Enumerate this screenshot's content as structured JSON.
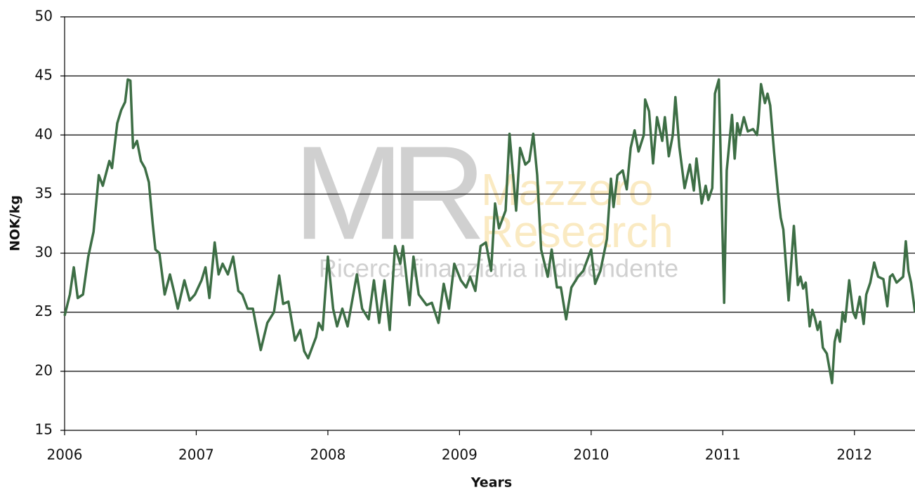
{
  "chart_data": {
    "type": "line",
    "y_label": "NOK/kg",
    "x_label": "Years",
    "watermark": {
      "logo": "MR",
      "name_line1": "Mazzero",
      "name_line2": "Research",
      "tagline": "Ricerca finanziaria indipendente"
    },
    "color": "#3d6e45",
    "grid": true,
    "xlim": [
      2006,
      2012.46
    ],
    "xticks": [
      2006,
      2007,
      2008,
      2009,
      2010,
      2011,
      2012
    ],
    "ylim": [
      15,
      50
    ],
    "yticks": [
      15,
      20,
      25,
      30,
      35,
      40,
      45,
      50
    ],
    "x": [
      2006.0,
      2006.04,
      2006.07,
      2006.1,
      2006.14,
      2006.18,
      2006.22,
      2006.26,
      2006.29,
      2006.34,
      2006.36,
      2006.4,
      2006.43,
      2006.46,
      2006.48,
      2006.5,
      2006.52,
      2006.55,
      2006.58,
      2006.61,
      2006.64,
      2006.67,
      2006.69,
      2006.72,
      2006.76,
      2006.8,
      2006.83,
      2006.86,
      2006.91,
      2006.95,
      2006.99,
      2007.04,
      2007.07,
      2007.1,
      2007.14,
      2007.17,
      2007.2,
      2007.24,
      2007.28,
      2007.32,
      2007.35,
      2007.39,
      2007.43,
      2007.49,
      2007.54,
      2007.59,
      2007.63,
      2007.66,
      2007.7,
      2007.75,
      2007.79,
      2007.82,
      2007.85,
      2007.91,
      2007.93,
      2007.96,
      2008.0,
      2008.04,
      2008.07,
      2008.11,
      2008.15,
      2008.22,
      2008.26,
      2008.31,
      2008.35,
      2008.39,
      2008.43,
      2008.47,
      2008.51,
      2008.55,
      2008.57,
      2008.62,
      2008.65,
      2008.69,
      2008.75,
      2008.79,
      2008.84,
      2008.88,
      2008.92,
      2008.96,
      2009.01,
      2009.05,
      2009.08,
      2009.12,
      2009.16,
      2009.2,
      2009.24,
      2009.27,
      2009.3,
      2009.35,
      2009.38,
      2009.43,
      2009.46,
      2009.5,
      2009.53,
      2009.56,
      2009.59,
      2009.62,
      2009.67,
      2009.7,
      2009.74,
      2009.77,
      2009.81,
      2009.85,
      2009.9,
      2009.94,
      2010.0,
      2010.03,
      2010.07,
      2010.12,
      2010.15,
      2010.17,
      2010.2,
      2010.24,
      2010.27,
      2010.3,
      2010.33,
      2010.36,
      2010.4,
      2010.41,
      2010.44,
      2010.47,
      2010.5,
      2010.54,
      2010.56,
      2010.59,
      2010.62,
      2010.64,
      2010.67,
      2010.71,
      2010.75,
      2010.78,
      2010.8,
      2010.84,
      2010.87,
      2010.89,
      2010.92,
      2010.94,
      2010.97,
      2011.01,
      2011.03,
      2011.07,
      2011.09,
      2011.11,
      2011.13,
      2011.16,
      2011.19,
      2011.23,
      2011.26,
      2011.27,
      2011.29,
      2011.32,
      2011.34,
      2011.36,
      2011.39,
      2011.42,
      2011.44,
      2011.46,
      2011.5,
      2011.54,
      2011.57,
      2011.59,
      2011.61,
      2011.63,
      2011.66,
      2011.68,
      2011.7,
      2011.72,
      2011.74,
      2011.76,
      2011.79,
      2011.83,
      2011.85,
      2011.87,
      2011.89,
      2011.91,
      2011.93,
      2011.96,
      2011.99,
      2012.01,
      2012.04,
      2012.07,
      2012.09,
      2012.12,
      2012.15,
      2012.18,
      2012.22,
      2012.25,
      2012.27,
      2012.29,
      2012.32,
      2012.35,
      2012.37,
      2012.39,
      2012.41,
      2012.43,
      2012.46
    ],
    "values": [
      24.7,
      26.5,
      28.8,
      26.2,
      26.5,
      29.7,
      31.8,
      36.6,
      35.7,
      37.8,
      37.2,
      41,
      42.1,
      42.8,
      44.7,
      44.6,
      38.9,
      39.5,
      37.8,
      37.2,
      36,
      32.4,
      30.3,
      30,
      26.5,
      28.2,
      26.8,
      25.3,
      27.7,
      26,
      26.5,
      27.7,
      28.8,
      26.2,
      30.9,
      28.2,
      29.1,
      28.2,
      29.7,
      26.8,
      26.5,
      25.3,
      25.3,
      21.8,
      24.1,
      25,
      28.1,
      25.7,
      25.9,
      22.6,
      23.5,
      21.7,
      21.1,
      22.9,
      24.1,
      23.5,
      29.7,
      25.3,
      23.8,
      25.3,
      23.8,
      28.2,
      25.3,
      24.4,
      27.7,
      24.1,
      27.7,
      23.5,
      30.6,
      29.1,
      30.6,
      25.6,
      29.7,
      26.5,
      25.6,
      25.8,
      24.1,
      27.4,
      25.3,
      29.1,
      27.7,
      27.1,
      28,
      26.8,
      30.6,
      30.9,
      28.5,
      34.2,
      32.1,
      33.6,
      40.1,
      33.6,
      38.9,
      37.5,
      37.8,
      40.1,
      36.6,
      30.3,
      28,
      30.3,
      27.1,
      27.1,
      24.4,
      27.1,
      28,
      28.5,
      30.3,
      27.4,
      28.5,
      31.2,
      36.3,
      33.9,
      36.6,
      37,
      35.4,
      38.9,
      40.4,
      38.6,
      40,
      43,
      42,
      37.6,
      41.5,
      39.5,
      41.5,
      38.2,
      40,
      43.2,
      39,
      35.5,
      37.5,
      35.3,
      38,
      34.2,
      35.7,
      34.5,
      35.5,
      43.5,
      44.7,
      25.8,
      37,
      41.7,
      38,
      41,
      40,
      41.5,
      40.3,
      40.5,
      40,
      41,
      44.3,
      42.7,
      43.5,
      42.5,
      38.5,
      35,
      33,
      32,
      26,
      32.3,
      27.3,
      28,
      27,
      27.5,
      23.8,
      25.2,
      24.5,
      23.5,
      24.2,
      22,
      21.5,
      19,
      22.5,
      23.5,
      22.5,
      25,
      24.2,
      27.7,
      25,
      24.5,
      26.3,
      24,
      26.5,
      27.5,
      29.2,
      28,
      27.8,
      25.5,
      28,
      28.2,
      27.5,
      27.8,
      28,
      31,
      28.5,
      27.5,
      25
    ]
  }
}
